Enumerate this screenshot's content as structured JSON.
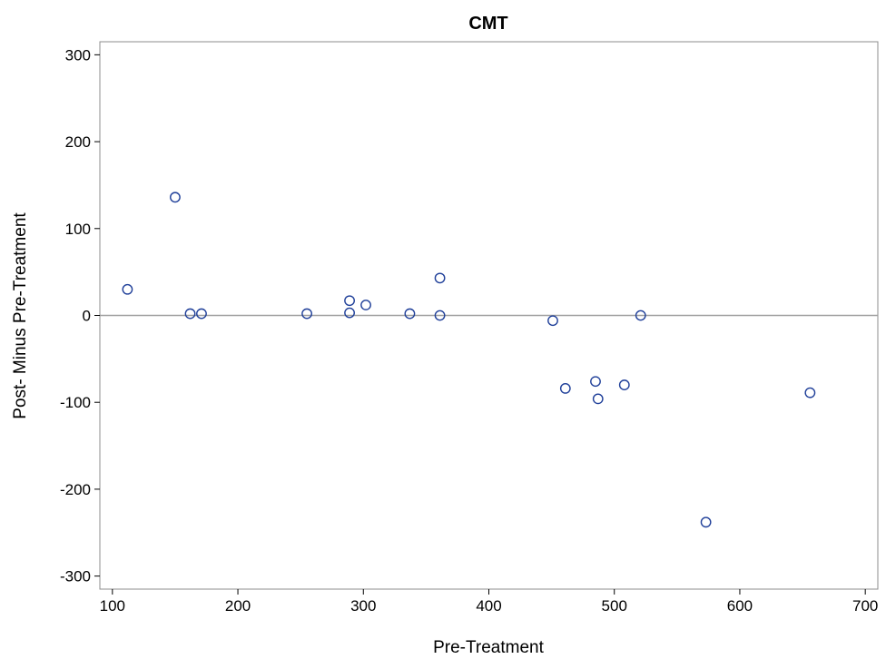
{
  "chart_data": {
    "type": "scatter",
    "title": "CMT",
    "xlabel": "Pre-Treatment",
    "ylabel": "Post- Minus Pre-Treatment",
    "xlim": [
      90,
      710
    ],
    "ylim": [
      -315,
      315
    ],
    "xticks": [
      100,
      200,
      300,
      400,
      500,
      600,
      700
    ],
    "yticks": [
      300,
      200,
      100,
      0,
      -100,
      -200,
      -300
    ],
    "reference_line_y": 0,
    "grid": false,
    "marker": "open-circle",
    "colors": {
      "marker": "#1f3f99",
      "reference_line": "#a0a0a0",
      "frame": "#8c8c8c"
    },
    "points": [
      {
        "x": 112,
        "y": 30
      },
      {
        "x": 150,
        "y": 136
      },
      {
        "x": 162,
        "y": 2
      },
      {
        "x": 171,
        "y": 2
      },
      {
        "x": 255,
        "y": 2
      },
      {
        "x": 289,
        "y": 17
      },
      {
        "x": 289,
        "y": 3
      },
      {
        "x": 302,
        "y": 12
      },
      {
        "x": 337,
        "y": 2
      },
      {
        "x": 361,
        "y": 43
      },
      {
        "x": 361,
        "y": 0
      },
      {
        "x": 451,
        "y": -6
      },
      {
        "x": 461,
        "y": -84
      },
      {
        "x": 485,
        "y": -76
      },
      {
        "x": 487,
        "y": -96
      },
      {
        "x": 508,
        "y": -80
      },
      {
        "x": 521,
        "y": 0
      },
      {
        "x": 573,
        "y": -238
      },
      {
        "x": 656,
        "y": -89
      }
    ]
  }
}
